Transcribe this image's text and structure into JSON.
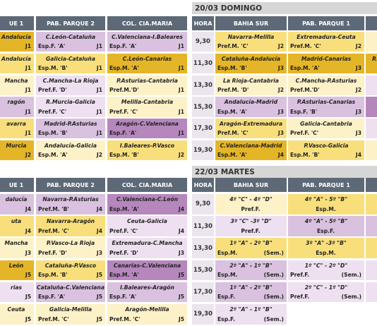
{
  "palette": {
    "G": "#e4b526",
    "Y": "#f8df7c",
    "c": "#fdf1c8",
    "p": "#d9c1df",
    "P": "#b687bd",
    "l": "#eee0f0"
  },
  "panels": [
    {
      "headers": [
        "UE 1",
        "PAB. PARQUE 2",
        "COL. CIA.MARIA"
      ],
      "rows": [
        [
          {
            "top": "Andalucía",
            "j": "J1",
            "c": "G"
          },
          {
            "top": "C.León-Cataluña",
            "cat": "Esp.F. 'A'",
            "j": "J1",
            "c": "p"
          },
          {
            "top": "C.Valenciana-I.Baleares",
            "cat": "Esp.F. 'A'",
            "j": "J1",
            "c": "p"
          }
        ],
        [
          {
            "top": "Andalucía",
            "j": "J1",
            "c": "Y"
          },
          {
            "top": "Galicia-Cataluña",
            "cat": "Esp.M. 'B'",
            "j": "J1",
            "c": "Y"
          },
          {
            "top": "C.León-Canarias",
            "cat": "Esp.M. 'A'",
            "j": "J1",
            "c": "G"
          }
        ],
        [
          {
            "top": "Mancha",
            "j": "J1",
            "c": "c"
          },
          {
            "top": "C.Mancha-La Rioja",
            "cat": "Pref.F. 'D'",
            "j": "J1",
            "c": "l"
          },
          {
            "top": "P.Asturias-Cantabria",
            "cat": "Pref.M.'D'",
            "j": "J1",
            "c": "c"
          }
        ],
        [
          {
            "top": "ragón",
            "j": "J1",
            "c": "p"
          },
          {
            "top": "R.Murcia-Galicia",
            "cat": "Pref.F. 'C'",
            "j": "J1",
            "c": "l"
          },
          {
            "top": "Melilla-Cantabria",
            "cat": "Pref.F. 'C'",
            "j": "J1",
            "c": "c"
          }
        ],
        [
          {
            "top": "avarra",
            "j": "J1",
            "c": "Y"
          },
          {
            "top": "Madrid-P.Asturias",
            "cat": "Esp.M. 'B'",
            "j": "J1",
            "c": "p"
          },
          {
            "top": "Aragón-C.Valenciana",
            "cat": "Esp.F. 'A'",
            "j": "J1",
            "c": "P"
          }
        ],
        [
          {
            "top": "Murcia",
            "j": "J2",
            "c": "G"
          },
          {
            "top": "Andalucía-Galicia",
            "cat": "Esp.M. 'A'",
            "j": "J2",
            "c": "c"
          },
          {
            "top": "I.Baleares-P.Vasco",
            "cat": "Esp.M. 'B'",
            "j": "J2",
            "c": "Y"
          }
        ]
      ]
    },
    {
      "title": "20/03 DOMINGO",
      "headers": [
        "HORA",
        "BAHIA SUR",
        "PAB. PARQUE 1"
      ],
      "times": [
        "9,30",
        "11,30",
        "13,30",
        "15,30",
        "17,30",
        "19,30"
      ],
      "rows": [
        [
          {
            "top": "Navarra-Melilla",
            "cat": "Pref.M. 'C'",
            "j": "J2",
            "c": "Y"
          },
          {
            "top": "Extremadura-Ceuta",
            "cat": "Pref.M. 'C'",
            "j": "J2",
            "c": "Y"
          },
          {
            "c": "c"
          }
        ],
        [
          {
            "top": "Cataluña-Andalucía",
            "cat": "Esp.M. 'B'",
            "j": "J3",
            "c": "G"
          },
          {
            "top": "Madrid-Canarias",
            "cat": "Esp.M. 'A'",
            "j": "J3",
            "c": "G"
          },
          {
            "top": "R.",
            "c": "G"
          }
        ],
        [
          {
            "top": "La Rioja-Cantabria",
            "cat": "Pref.M. 'D'",
            "j": "J2",
            "c": "c"
          },
          {
            "top": "C.Mancha-P.Asturias",
            "cat": "Pref.M.'D'",
            "j": "J2",
            "c": "c"
          },
          {
            "c": "l"
          }
        ],
        [
          {
            "top": "Andalucía-Madrid",
            "cat": "Esp.M. 'A'",
            "j": "J3",
            "c": "p"
          },
          {
            "top": "P.Asturias-Canarias",
            "cat": "Esp.F. 'B'",
            "j": "J3",
            "c": "p"
          },
          {
            "c": "P"
          }
        ],
        [
          {
            "top": "Aragón-Extremadura",
            "cat": "Pref.M. 'C'",
            "j": "J3",
            "c": "Y"
          },
          {
            "top": "Galicia-Cantabria",
            "cat": "Pref.F. 'C'",
            "j": "J3",
            "c": "c"
          },
          {
            "c": "l"
          }
        ],
        [
          {
            "top": "C.Valenciana-Madrid",
            "cat": "Esp.M. 'A'",
            "j": "J4",
            "c": "G"
          },
          {
            "top": "P.Vasco-Galicia",
            "cat": "Esp.M. 'B'",
            "j": "J4",
            "c": "Y"
          },
          {
            "c": "c"
          }
        ]
      ]
    },
    {
      "headers": [
        "UE 1",
        "PAB. PARQUE 2",
        "COL. CIA.MARIA"
      ],
      "rows": [
        [
          {
            "top": "dalucía",
            "j": "J4",
            "c": "p"
          },
          {
            "top": "Navarra-P.Asturias",
            "cat": "Pref.M. 'B'",
            "j": "J4",
            "c": "p"
          },
          {
            "top": "C.Valenciana-C.León",
            "cat": "Esp.M. 'A'",
            "j": "J4",
            "c": "P"
          }
        ],
        [
          {
            "top": "uta",
            "j": "J4",
            "c": "Y"
          },
          {
            "top": "Navarra-Aragón",
            "cat": "Pref.M. 'C'",
            "j": "J4",
            "c": "Y"
          },
          {
            "top": "Ceuta-Galicia",
            "cat": "Pref.F. 'C'",
            "j": "J4",
            "c": "l"
          }
        ],
        [
          {
            "top": "Mancha",
            "j": "J3",
            "c": "c"
          },
          {
            "top": "P.Vasco-La Rioja",
            "cat": "Pref.F. 'D'",
            "j": "J3",
            "c": "c"
          },
          {
            "top": "Extremadura-C.Mancha",
            "cat": "Pref.F. 'D'",
            "j": "J3",
            "c": "l"
          }
        ],
        [
          {
            "top": "León",
            "j": "J5",
            "c": "G"
          },
          {
            "top": "Cataluña-P.Vasco",
            "cat": "Esp.M. 'B'",
            "j": "J5",
            "c": "Y"
          },
          {
            "top": "Canarias-C.Valenciana",
            "cat": "Esp.M. 'A'",
            "j": "J5",
            "c": "P"
          }
        ],
        [
          {
            "top": "rias",
            "j": "J5",
            "c": "l"
          },
          {
            "top": "Cataluña-C.Valenciana",
            "cat": "Esp.F. 'A'",
            "j": "J5",
            "c": "p"
          },
          {
            "top": "I.Baleares-Aragón",
            "cat": "Esp.F. 'A'",
            "j": "J5",
            "c": "p"
          }
        ],
        [
          {
            "top": "Ceuta",
            "j": "J5",
            "c": "c"
          },
          {
            "top": "Galicia-Melilla",
            "cat": "Pref.M. 'C'",
            "j": "J5",
            "c": "c"
          },
          {
            "top": "Aragón-Melilla",
            "cat": "Pref.M. 'C'",
            "j": "J5",
            "c": "c"
          }
        ]
      ]
    },
    {
      "title": "22/03 MARTES",
      "headers": [
        "HORA",
        "BAHIA SUR",
        "PAB. PARQUE 1"
      ],
      "times": [
        "9,30",
        "11,30",
        "13,30",
        "15,30",
        "17,30",
        "19,30"
      ],
      "rows": [
        [
          {
            "top": "4º \"C\" - 4º \"D\"",
            "cat": "Pref.F.",
            "c": "c"
          },
          {
            "top": "4º \"A\" - 5º \"B\"",
            "cat": "Esp.M.",
            "c": "Y"
          },
          {
            "c": "Y"
          }
        ],
        [
          {
            "top": "3º \"C\" -3º \"D\"",
            "cat": "Pref.F.",
            "c": "l"
          },
          {
            "top": "4º \"A\" - 5º \"B\"",
            "cat": "Esp.F.",
            "c": "p"
          },
          {
            "c": "p"
          }
        ],
        [
          {
            "top": "1º  \"A\" - 2º \"B\"",
            "cat": "Esp.M.",
            "sem": "(Sem.)",
            "c": "Y"
          },
          {
            "top": "3º \"A\" -3º \"B\"",
            "cat": "Esp.M.",
            "c": "Y"
          },
          {
            "c": "Y"
          }
        ],
        [
          {
            "top": "2º \"A\" - 1º \"B\"",
            "cat": "Esp.M.",
            "sem": "(Sem.)",
            "c": "p"
          },
          {
            "top": "1º \"C\" - 2º \"D\"",
            "cat": "Pref.F.",
            "sem": "(Sem.)",
            "c": "l"
          },
          {
            "c": "l"
          }
        ],
        [
          {
            "top": "1º \"A\" - 2º \"B\"",
            "cat": "Esp.F.",
            "sem": "(Sem.)",
            "c": "p"
          },
          {
            "top": "2º \"C\" - 1º \"D\"",
            "cat": "Pref.F.",
            "sem": "(Sem.)",
            "c": "l"
          },
          {
            "c": "l"
          }
        ],
        [
          {
            "top": "2º \"A\" - 1º \"B\"",
            "cat": "Esp.F.",
            "sem": "(Sem.)",
            "c": "l"
          }
        ]
      ]
    }
  ]
}
